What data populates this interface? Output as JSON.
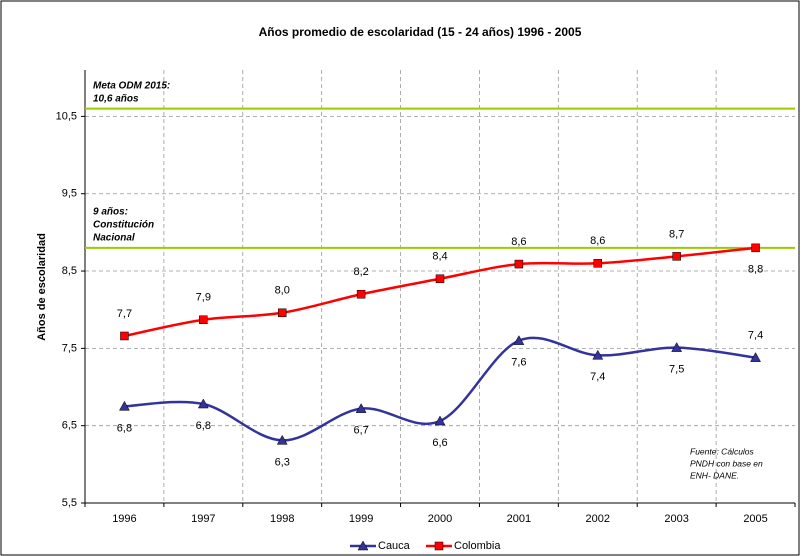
{
  "chart_data": {
    "type": "line",
    "title": "Años promedio de escolaridad (15 - 24 años) 1996 -  2005",
    "y_label": "Años de escolaridad",
    "categories": [
      "1996",
      "1997",
      "1998",
      "1999",
      "2000",
      "2001",
      "2002",
      "2003",
      "2005"
    ],
    "series": [
      {
        "name": "Cauca",
        "color": "#33339a",
        "marker": "triangle",
        "values": [
          6.75,
          6.78,
          6.31,
          6.72,
          6.56,
          7.6,
          7.41,
          7.51,
          7.38
        ],
        "value_labels": [
          "6,8",
          "6,8",
          "6,3",
          "6,7",
          "6,6",
          "7,6",
          "7,4",
          "7,5",
          "7,4"
        ]
      },
      {
        "name": "Colombia",
        "color": "#ff0000",
        "marker": "square",
        "values": [
          7.66,
          7.87,
          7.96,
          8.2,
          8.4,
          8.59,
          8.6,
          8.69,
          8.8
        ],
        "value_labels": [
          "7,7",
          "7,9",
          "8,0",
          "8,2",
          "8,4",
          "8,6",
          "8,6",
          "8,7",
          "8,8"
        ]
      }
    ],
    "ylim": [
      5.5,
      11.1
    ],
    "yticks": [
      {
        "value": 5.5,
        "label": "5,5"
      },
      {
        "value": 6.5,
        "label": "6,5"
      },
      {
        "value": 7.5,
        "label": "7,5"
      },
      {
        "value": 8.5,
        "label": "8,5"
      },
      {
        "value": 9.5,
        "label": "9,5"
      },
      {
        "value": 10.5,
        "label": "10,5"
      }
    ],
    "grid": true,
    "reference_lines": [
      {
        "value": 10.6,
        "color": "#99cc00",
        "label": [
          "Meta ODM 2015:",
          "10,6 años"
        ]
      },
      {
        "value": 8.8,
        "color": "#99cc00",
        "label": [
          "9 años:",
          "Constitución",
          "Nacional"
        ]
      }
    ],
    "source_note": [
      "Fuente: Cálculos",
      "PNDH con base en",
      "ENH- DANE."
    ],
    "legend": "bottom"
  }
}
